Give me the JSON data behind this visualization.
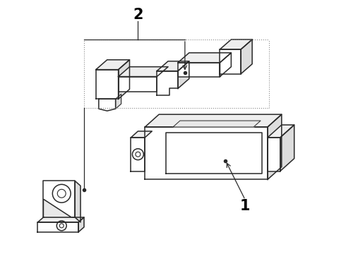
{
  "background_color": "#ffffff",
  "line_color": "#2a2a2a",
  "label_color": "#000000",
  "label_1": "1",
  "label_2": "2",
  "figsize": [
    4.9,
    3.6
  ],
  "dpi": 100
}
